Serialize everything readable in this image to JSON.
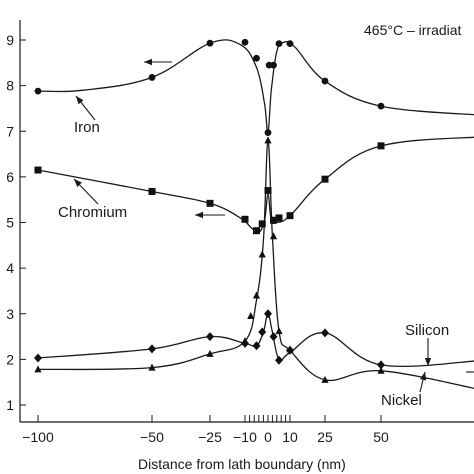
{
  "chart_data": {
    "type": "line",
    "title": "465°C – irradiat",
    "xlabel": "Distance from lath boundary (nm)",
    "ylabel": "",
    "xlim": [
      -100,
      100
    ],
    "ylim": [
      1,
      9
    ],
    "x_ticks": [
      -100,
      -50,
      -25,
      -10,
      0,
      10,
      25,
      50
    ],
    "x_tick_labels": [
      "−100",
      "−50",
      "−25",
      "−10",
      "0",
      "10",
      "25",
      "50"
    ],
    "x_minor_ticks": [
      -8,
      -6,
      -4,
      -2,
      2,
      4,
      6,
      8
    ],
    "y_ticks": [
      1,
      2,
      3,
      4,
      5,
      6,
      7,
      8,
      9
    ],
    "series": [
      {
        "name": "Iron",
        "marker": "circle",
        "x": [
          -100,
          -50,
          -25,
          -10,
          -5,
          0,
          0.5,
          2.5,
          5,
          10,
          25,
          50
        ],
        "y": [
          7.88,
          8.18,
          8.93,
          8.95,
          8.6,
          6.97,
          8.45,
          8.45,
          8.92,
          8.92,
          8.1,
          7.55
        ]
      },
      {
        "name": "Chromium",
        "marker": "square",
        "x": [
          -100,
          -50,
          -25,
          -10,
          -5,
          -2.5,
          0,
          2.5,
          5,
          10,
          25,
          50
        ],
        "y": [
          6.15,
          5.68,
          5.42,
          5.07,
          4.82,
          4.97,
          5.7,
          5.05,
          5.1,
          5.15,
          5.95,
          6.68
        ]
      },
      {
        "name": "Silicon",
        "marker": "triangle",
        "x": [
          -100,
          -50,
          -25,
          -10,
          -7.5,
          -5,
          -2.5,
          0,
          2.5,
          5,
          10,
          25,
          50
        ],
        "y": [
          1.78,
          1.82,
          2.12,
          2.4,
          2.95,
          3.4,
          4.3,
          6.8,
          4.7,
          2.62,
          2.22,
          1.55,
          1.75
        ]
      },
      {
        "name": "Nickel",
        "marker": "diamond",
        "x": [
          -100,
          -50,
          -25,
          -10,
          -5,
          -2.5,
          0,
          2.5,
          5,
          10,
          25,
          50
        ],
        "y": [
          2.03,
          2.23,
          2.5,
          2.35,
          2.3,
          2.6,
          3.0,
          2.5,
          1.98,
          2.2,
          2.58,
          1.88
        ]
      }
    ],
    "annotations": [
      "Iron",
      "Chromium",
      "Silicon",
      "Nickel"
    ]
  }
}
